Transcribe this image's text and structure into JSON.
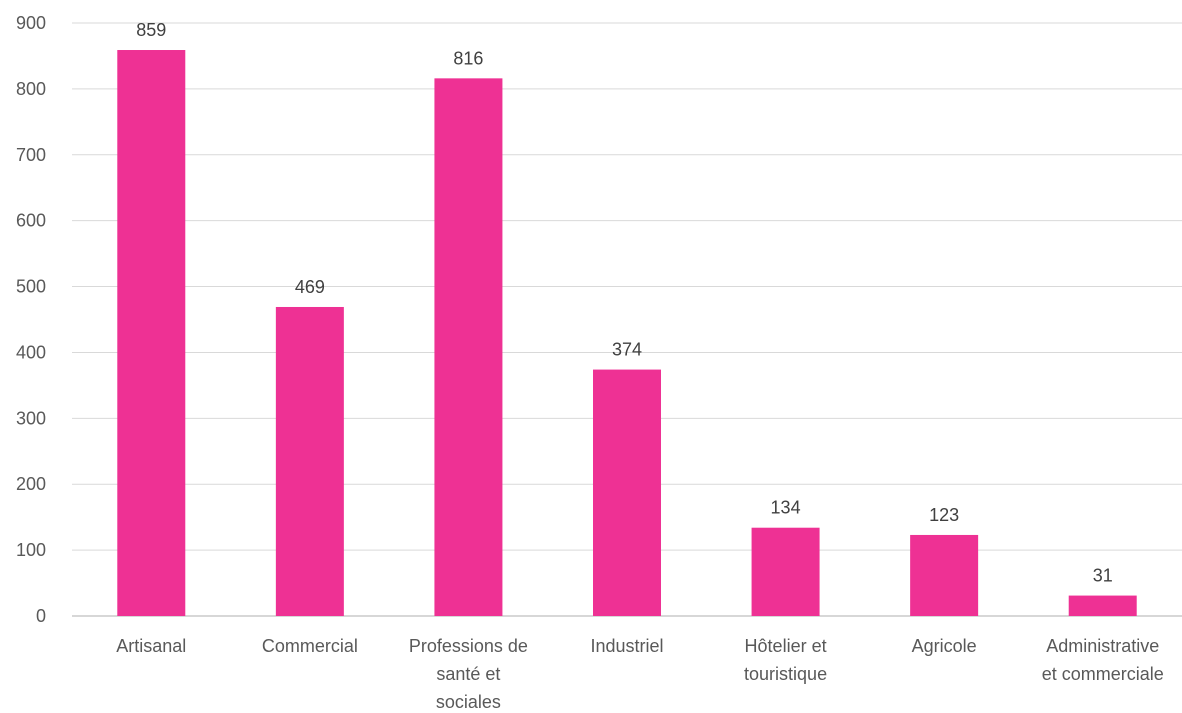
{
  "chart_data": {
    "type": "bar",
    "categories": [
      [
        "Artisanal"
      ],
      [
        "Commercial"
      ],
      [
        "Professions de",
        "santé et",
        "sociales"
      ],
      [
        "Industriel"
      ],
      [
        "Hôtelier et",
        "touristique"
      ],
      [
        "Agricole"
      ],
      [
        "Administrative",
        "et commerciale"
      ]
    ],
    "values": [
      859,
      469,
      816,
      374,
      134,
      123,
      31
    ],
    "data_labels": [
      "859",
      "469",
      "816",
      "374",
      "134",
      "123",
      "31"
    ],
    "ylim": [
      0,
      900
    ],
    "yticks": [
      "0",
      "100",
      "200",
      "300",
      "400",
      "500",
      "600",
      "700",
      "800",
      "900"
    ],
    "title": "",
    "xlabel": "",
    "ylabel": "",
    "grid": true,
    "legend": "none",
    "bar_color": "#EE3194"
  }
}
